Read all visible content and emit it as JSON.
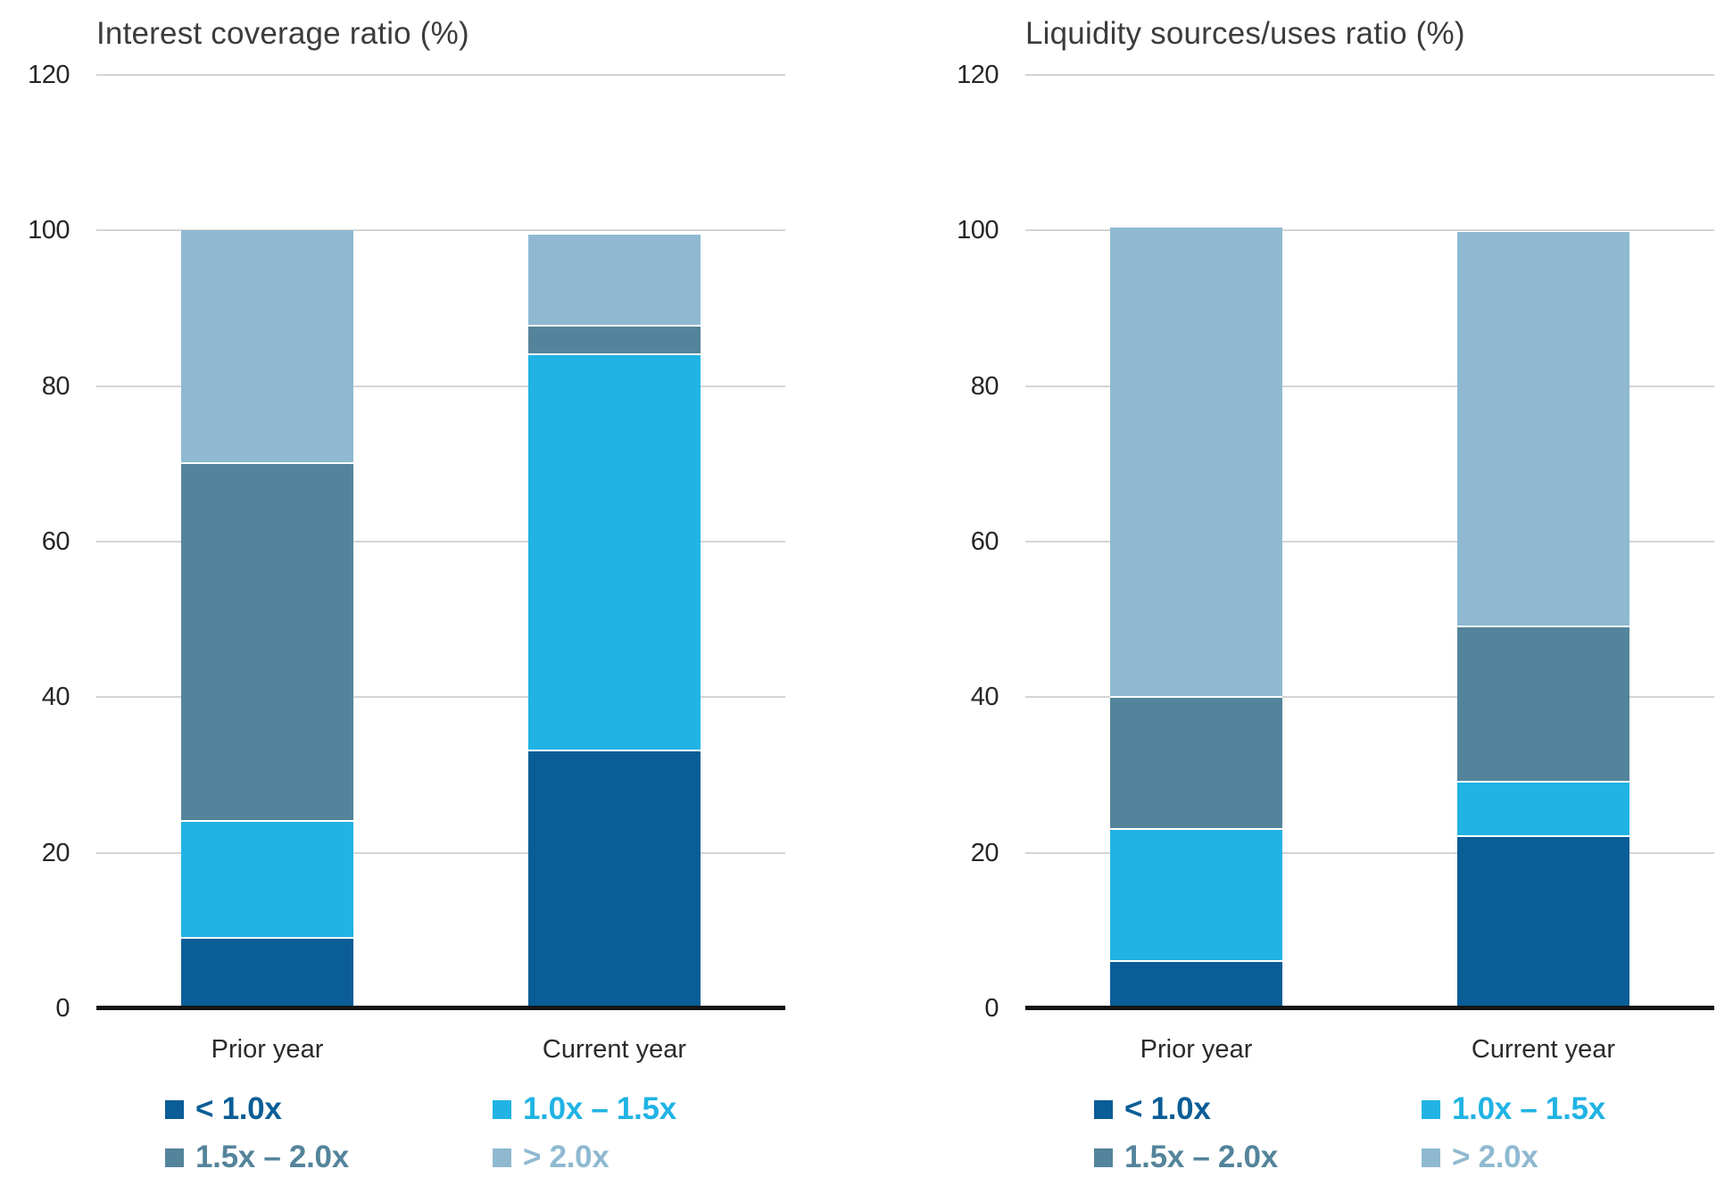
{
  "palette": {
    "dark_blue": "#0a5d96",
    "cyan": "#20b3e4",
    "steel_blue": "#54849b",
    "pale_blue": "#8fb9d1",
    "gridline": "#d4d4d4",
    "axis_line": "#141414",
    "title_text": "#3c3c3c",
    "tick_text": "#262626",
    "category_text": "#2b2b2b",
    "background": "#ffffff"
  },
  "chart_data": [
    {
      "type": "bar",
      "stacked": true,
      "title": "Interest coverage ratio (%)",
      "categories": [
        "Prior year",
        "Current year"
      ],
      "series": [
        {
          "name": "< 1.0x",
          "color": "#0a5d96",
          "values": [
            9,
            33
          ]
        },
        {
          "name": "1.0x – 1.5x",
          "color": "#20b3e4",
          "values": [
            15,
            51
          ]
        },
        {
          "name": "1.5x – 2.0x",
          "color": "#54849b",
          "values": [
            46,
            3.7
          ]
        },
        {
          "name": "> 2.0x",
          "color": "#8fb9d1",
          "values": [
            30,
            11.8
          ]
        }
      ],
      "ylim": [
        0,
        120
      ],
      "yticks": [
        0,
        20,
        40,
        60,
        80,
        100,
        120
      ],
      "grid": true,
      "legend_position": "bottom"
    },
    {
      "type": "bar",
      "stacked": true,
      "title": "Liquidity sources/uses ratio (%)",
      "categories": [
        "Prior year",
        "Current year"
      ],
      "series": [
        {
          "name": "< 1.0x",
          "color": "#0a5d96",
          "values": [
            6,
            22
          ]
        },
        {
          "name": "1.0x – 1.5x",
          "color": "#20b3e4",
          "values": [
            17,
            7
          ]
        },
        {
          "name": "1.5x – 2.0x",
          "color": "#54849b",
          "values": [
            17,
            20
          ]
        },
        {
          "name": "> 2.0x",
          "color": "#8fb9d1",
          "values": [
            60.5,
            50.8
          ]
        }
      ],
      "ylim": [
        0,
        120
      ],
      "yticks": [
        0,
        20,
        40,
        60,
        80,
        100,
        120
      ],
      "grid": true,
      "legend_position": "bottom"
    }
  ]
}
